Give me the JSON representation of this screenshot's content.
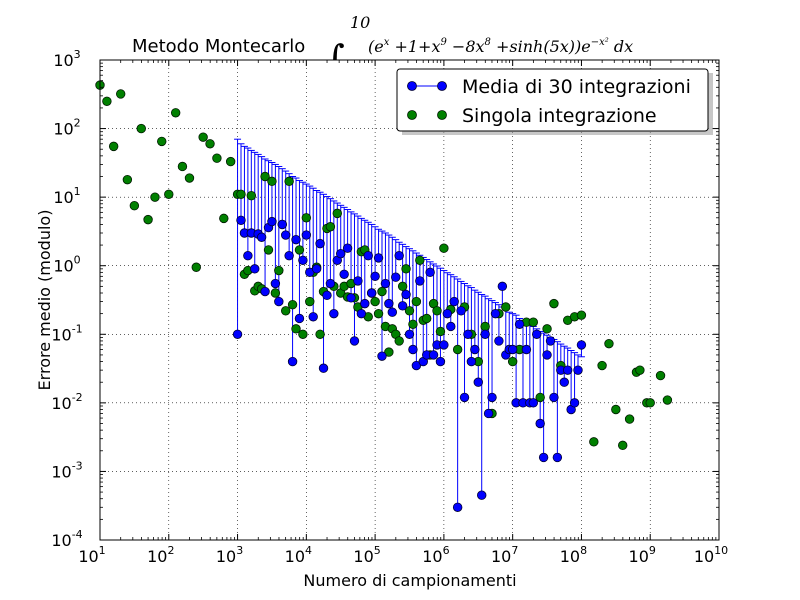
{
  "chart_data": {
    "type": "scatter",
    "title": "Metodo Montecarlo",
    "title_math": {
      "integral_lower": "1",
      "integral_upper": "10",
      "integrand": "(e^x + 1 + x^9 − 8x^8 + sinh(5x)) e^(−x^2) dx",
      "parts": [
        "(e",
        "x",
        " +1+x",
        "9",
        " −8x",
        "8",
        " +sinh(5x))e",
        "−x²",
        " dx"
      ]
    },
    "xlabel": "Numero di campionamenti",
    "ylabel": "Errore medio (modulo)",
    "xscale": "log",
    "yscale": "log",
    "xlim": [
      10,
      10000000000
    ],
    "ylim": [
      0.0001,
      1000
    ],
    "grid": true,
    "legend_position": "top-right",
    "x_ticks": [
      {
        "base": "10",
        "exp": "1"
      },
      {
        "base": "10",
        "exp": "2"
      },
      {
        "base": "10",
        "exp": "3"
      },
      {
        "base": "10",
        "exp": "4"
      },
      {
        "base": "10",
        "exp": "5"
      },
      {
        "base": "10",
        "exp": "6"
      },
      {
        "base": "10",
        "exp": "7"
      },
      {
        "base": "10",
        "exp": "8"
      },
      {
        "base": "10",
        "exp": "9"
      },
      {
        "base": "10",
        "exp": "10"
      }
    ],
    "y_ticks": [
      {
        "base": "10",
        "exp": "-4"
      },
      {
        "base": "10",
        "exp": "-3"
      },
      {
        "base": "10",
        "exp": "-2"
      },
      {
        "base": "10",
        "exp": "-1"
      },
      {
        "base": "10",
        "exp": "0"
      },
      {
        "base": "10",
        "exp": "1"
      },
      {
        "base": "10",
        "exp": "2"
      },
      {
        "base": "10",
        "exp": "3"
      }
    ],
    "series": [
      {
        "name": "Media di 30 integrazioni",
        "color": "#0000ff",
        "edge_color": "#000033",
        "has_error_bars": true,
        "error_bar_color": "#0000ff",
        "x": [
          1000,
          1122,
          1259,
          1413,
          1585,
          1778,
          1995,
          2239,
          2512,
          2818,
          3162,
          3548,
          3981,
          4467,
          5012,
          5623,
          6310,
          7079,
          7943,
          8913,
          10000,
          11220,
          12589,
          14125,
          15849,
          17783,
          19953,
          22387,
          25119,
          28184,
          31623,
          35481,
          39811,
          44668,
          50119,
          56234,
          63096,
          70795,
          79433,
          89125,
          100000,
          112202,
          125893,
          141254,
          158489,
          177828,
          199526,
          223872,
          251189,
          281838,
          316228,
          354813,
          398107,
          446684,
          501187,
          562341,
          630957,
          707946,
          794328,
          891251,
          1000000,
          1122018,
          1258925,
          1412538,
          1584893,
          1778279,
          1995262,
          2238721,
          2511886,
          2818383,
          3162278,
          3548134,
          3981072,
          4466836,
          5011872,
          5623413,
          6309573,
          7079458,
          7943282,
          8912509,
          10000000,
          11220185,
          12589254,
          14125375,
          15848932,
          17782794,
          19952623,
          22387211,
          25118864,
          28183829,
          31622777,
          35481339,
          39810717,
          44668359,
          50118723,
          56234133,
          63095734,
          70794578,
          79432823,
          89125094,
          100000000
        ],
        "y": [
          0.1,
          4.6,
          3.0,
          1.4,
          3.0,
          0.9,
          2.9,
          2.6,
          0.42,
          3.6,
          4.4,
          0.55,
          0.3,
          4.0,
          2.8,
          1.4,
          0.04,
          2.4,
          0.17,
          1.2,
          2.8,
          0.8,
          0.18,
          0.9,
          2.1,
          0.032,
          0.37,
          0.55,
          0.2,
          1.2,
          1.5,
          0.75,
          1.8,
          0.34,
          0.08,
          0.6,
          0.2,
          0.28,
          1.4,
          0.4,
          0.7,
          1.3,
          0.048,
          0.55,
          0.28,
          0.21,
          0.68,
          1.4,
          0.26,
          0.38,
          0.1,
          0.06,
          0.035,
          0.6,
          0.04,
          0.05,
          0.8,
          0.05,
          0.07,
          0.04,
          0.07,
          0.2,
          0.13,
          0.3,
          0.0003,
          0.22,
          0.012,
          0.1,
          0.04,
          0.06,
          0.02,
          0.00045,
          0.1,
          0.007,
          0.012,
          0.2,
          0.08,
          0.5,
          0.05,
          0.06,
          0.06,
          0.01,
          0.14,
          0.01,
          0.06,
          0.01,
          0.01,
          0.1,
          0.005,
          0.0016,
          0.05,
          0.08,
          0.012,
          0.0016,
          0.03,
          0.02,
          0.03,
          0.008,
          0.01,
          0.03,
          0.07
        ],
        "err_upper": [
          70,
          60,
          55,
          52,
          48,
          45,
          42,
          39,
          36,
          34,
          32,
          30,
          28,
          26,
          24,
          22,
          20,
          19,
          17.5,
          16.5,
          15.5,
          14.5,
          13.5,
          12.5,
          11.8,
          11,
          10.2,
          9.5,
          8.8,
          8.2,
          7.6,
          7.1,
          6.6,
          6.1,
          5.7,
          5.3,
          4.9,
          4.6,
          4.3,
          4.0,
          3.7,
          3.4,
          3.2,
          3.0,
          2.8,
          2.6,
          2.4,
          2.2,
          2.05,
          1.9,
          1.77,
          1.65,
          1.53,
          1.42,
          1.32,
          1.23,
          1.14,
          1.06,
          0.99,
          0.92,
          0.85,
          0.79,
          0.74,
          0.69,
          0.64,
          0.59,
          0.55,
          0.51,
          0.48,
          0.44,
          0.41,
          0.38,
          0.36,
          0.33,
          0.31,
          0.29,
          0.27,
          0.25,
          0.23,
          0.21,
          0.2,
          0.19,
          0.17,
          0.16,
          0.15,
          0.14,
          0.13,
          0.12,
          0.11,
          0.104,
          0.097,
          0.09,
          0.084,
          0.078,
          0.072,
          0.067,
          0.063,
          0.058,
          0.054,
          0.05,
          0.047
        ]
      },
      {
        "name": "Singola integrazione",
        "color": "#008000",
        "edge_color": "#001a00",
        "has_error_bars": false,
        "x": [
          10,
          12.6,
          15.8,
          20,
          25,
          31.6,
          39.8,
          50,
          63,
          79,
          100,
          126,
          158,
          200,
          251,
          316,
          398,
          501,
          631,
          794,
          1000,
          1122,
          1259,
          1413,
          1585,
          1778,
          1995,
          2239,
          2512,
          2818,
          3162,
          3548,
          3981,
          4467,
          5012,
          5623,
          6310,
          7079,
          7943,
          8913,
          10000,
          11220,
          12589,
          14125,
          15849,
          17783,
          19953,
          22387,
          25119,
          28184,
          31623,
          35481,
          39811,
          44668,
          50119,
          56234,
          63096,
          70795,
          79433,
          89125,
          100000,
          112202,
          125893,
          141254,
          158489,
          177828,
          199526,
          223872,
          251189,
          281838,
          316228,
          354813,
          398107,
          446684,
          501187,
          562341,
          630957,
          707946,
          794328,
          891251,
          1000000,
          1258925,
          1584893,
          1995262,
          2511886,
          3162278,
          3981072,
          5011872,
          6309573,
          7943282,
          10000000,
          12589254,
          15848932,
          19952623,
          25118864,
          31622777,
          39810717,
          50118723,
          63095734,
          79432823,
          100000000,
          151356125,
          199526231,
          251188643,
          316227766,
          398107171,
          501187234,
          630957344,
          707945784,
          891250938,
          1000000000,
          1412537545,
          1778279410
        ],
        "y": [
          430,
          250,
          55,
          320,
          18,
          7.5,
          100,
          4.7,
          10,
          65,
          11,
          170,
          28,
          19,
          0.95,
          75,
          60,
          37,
          4.9,
          33,
          11,
          11,
          0.75,
          0.85,
          10.5,
          0.43,
          0.5,
          0.46,
          20,
          1.7,
          17,
          0.4,
          0.85,
          4,
          0.22,
          17,
          0.27,
          0.12,
          1.7,
          0.1,
          5,
          0.3,
          0.8,
          0.95,
          0.1,
          0.42,
          3.5,
          3.7,
          0.5,
          5.8,
          0.4,
          0.5,
          0.35,
          0.55,
          0.34,
          0.25,
          1.6,
          1.7,
          0.18,
          0.4,
          0.3,
          0.2,
          0.42,
          0.13,
          0.055,
          0.12,
          0.1,
          0.08,
          0.5,
          0.9,
          0.22,
          0.14,
          0.3,
          1.2,
          0.16,
          0.17,
          0.05,
          0.28,
          0.22,
          0.11,
          1.8,
          0.23,
          0.06,
          0.25,
          0.1,
          0.04,
          0.13,
          0.007,
          0.2,
          0.25,
          0.04,
          0.06,
          0.15,
          0.15,
          0.012,
          0.12,
          0.28,
          0.035,
          0.16,
          0.18,
          0.19,
          0.0027,
          0.035,
          0.073,
          0.008,
          0.0024,
          0.0058,
          0.028,
          0.03,
          0.01,
          0.01,
          0.025,
          0.011
        ]
      }
    ]
  }
}
